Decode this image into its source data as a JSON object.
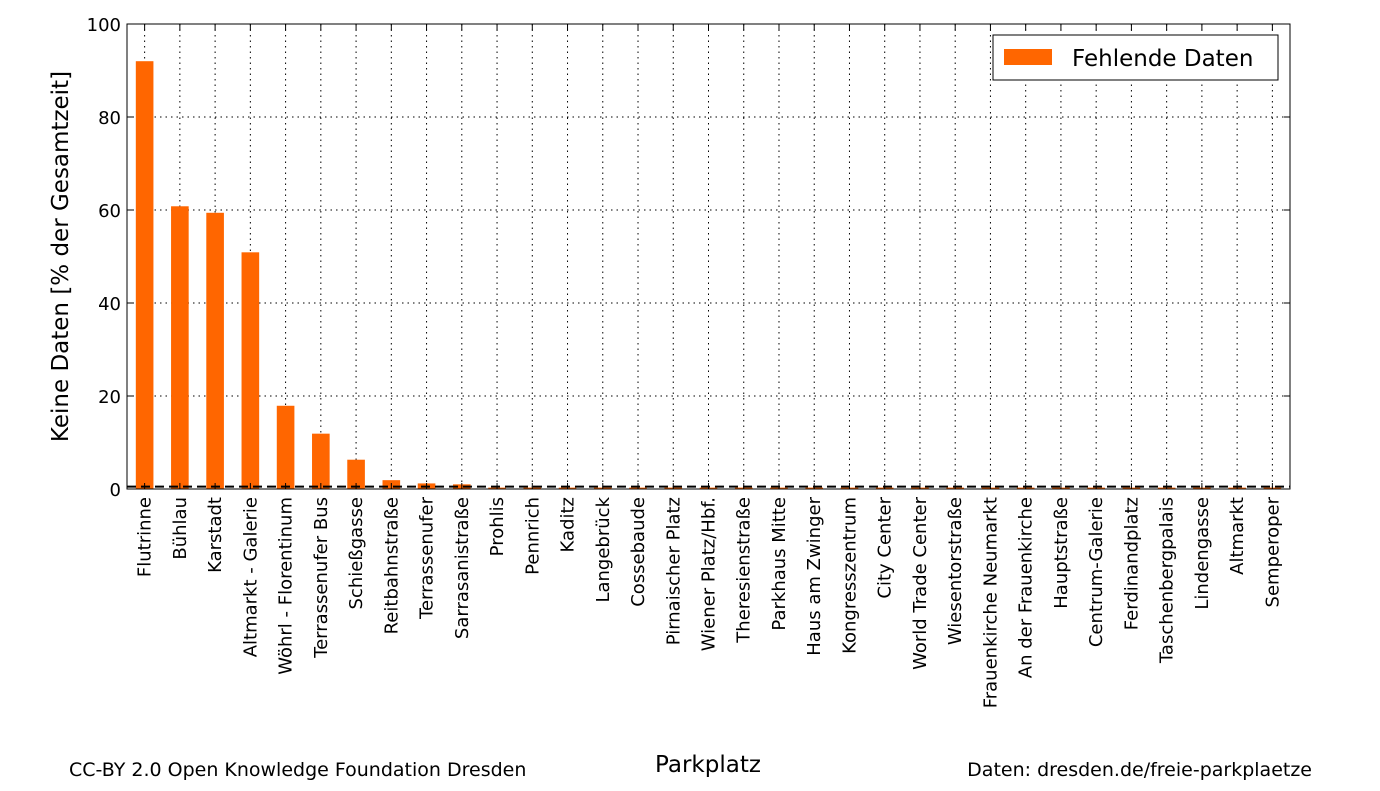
{
  "chart_data": {
    "type": "bar",
    "xlabel": "Parkplatz",
    "ylabel": "Keine Daten [% der Gesamtzeit]",
    "ylim": [
      0,
      100
    ],
    "yticks": [
      0,
      20,
      40,
      60,
      80,
      100
    ],
    "grid": true,
    "legend_position": "top-right",
    "reference_line": 0.5,
    "categories": [
      "Flutrinne",
      "Bühlau",
      "Karstadt",
      "Altmarkt - Galerie",
      "Wöhrl - Florentinum",
      "Terrassenufer Bus",
      "Schießgasse",
      "Reitbahnstraße",
      "Terrassenufer",
      "Sarrasanistraße",
      "Prohlis",
      "Pennrich",
      "Kaditz",
      "Langebrück",
      "Cossebaude",
      "Pirnaischer Platz",
      "Wiener Platz/Hbf.",
      "Theresienstraße",
      "Parkhaus Mitte",
      "Haus am Zwinger",
      "Kongresszentrum",
      "City  Center",
      "World Trade Center",
      "Wiesentorstraße",
      "Frauenkirche Neumarkt",
      "An der Frauenkirche",
      "Hauptstraße",
      "Centrum-Galerie",
      "Ferdinandplatz",
      "Taschenbergpalais",
      "Lindengasse",
      "Altmarkt",
      "Semperoper"
    ],
    "series": [
      {
        "name": "Fehlende Daten",
        "color": "#ff6600",
        "values": [
          92.0,
          60.8,
          59.4,
          50.9,
          17.9,
          11.9,
          6.3,
          1.9,
          1.2,
          1.0,
          0.3,
          0.3,
          0.3,
          0.3,
          0.3,
          0.3,
          0.3,
          0.3,
          0.3,
          0.3,
          0.3,
          0.3,
          0.3,
          0.3,
          0.3,
          0.3,
          0.3,
          0.3,
          0.3,
          0.3,
          0.3,
          0.3,
          0.3
        ]
      }
    ]
  },
  "footer": {
    "license": "CC-BY 2.0 Open Knowledge Foundation Dresden",
    "source": "Daten: dresden.de/freie-parkplaetze"
  }
}
